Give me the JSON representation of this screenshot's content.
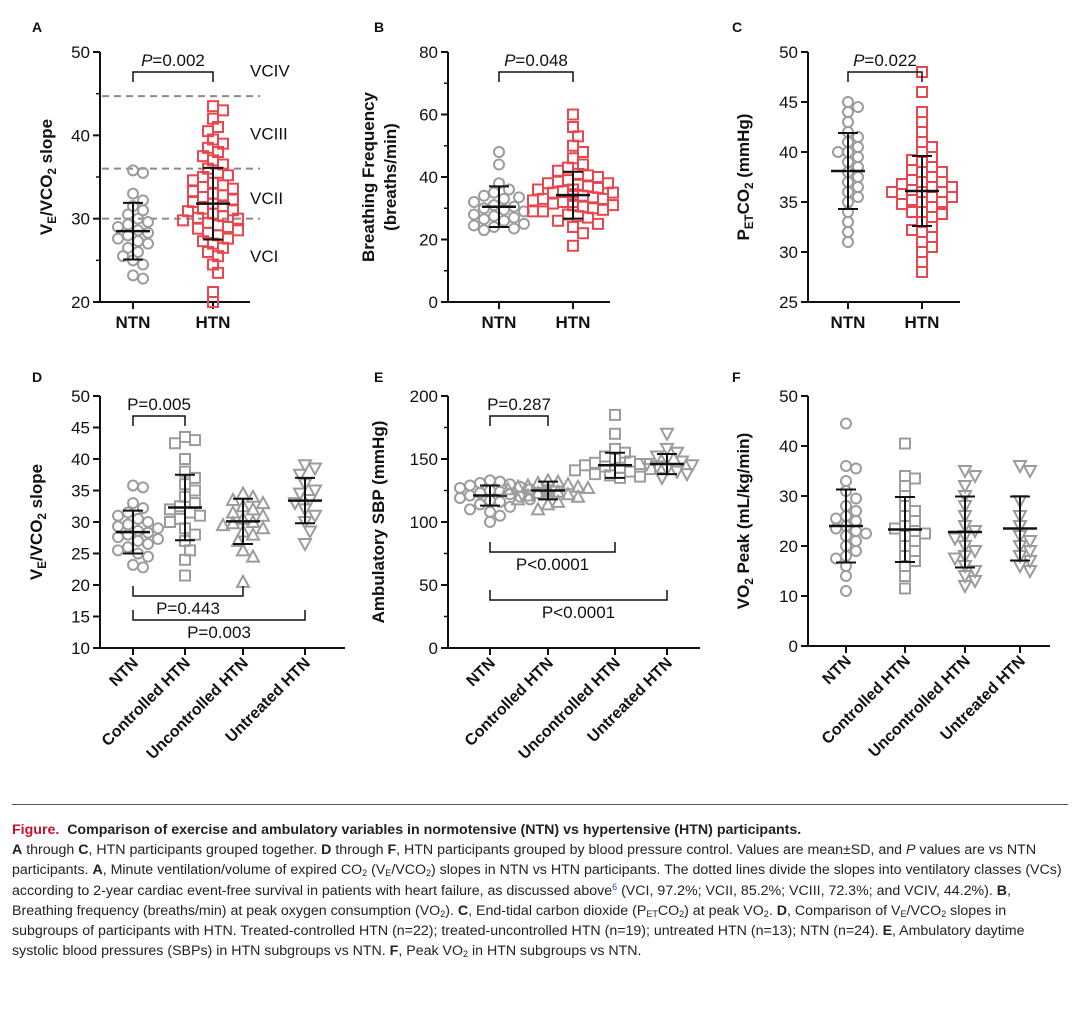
{
  "colors": {
    "ntn": "#a0a0a0",
    "htn": "#e8474f",
    "grey_marker": "#9c9c9c",
    "bar": "#111111",
    "dash": "#8a8a8a",
    "caption_accent": "#c8102e"
  },
  "chart_data": [
    {
      "panel": "A",
      "type": "scatter",
      "ylabel": "V_E/VCO_2 slope",
      "ylim": [
        20,
        50
      ],
      "yticks": [
        20,
        30,
        40,
        50
      ],
      "categories": [
        "NTN",
        "HTN"
      ],
      "bracket": {
        "label": "P=0.002",
        "from": 0,
        "to": 1
      },
      "reference_lines": [
        {
          "y": 30,
          "label": "VCI"
        },
        {
          "y": 36,
          "label": "VCII"
        },
        {
          "y": 44.7,
          "label": "VCIII"
        },
        {
          "label": "VCIV"
        }
      ],
      "series": [
        {
          "mean": 28.5,
          "sd": 3.4,
          "marker": "circle",
          "points": [
            22.8,
            23.2,
            24.5,
            25.0,
            25.5,
            26.0,
            26.5,
            27.0,
            27.3,
            27.6,
            28.0,
            28.3,
            28.6,
            29.0,
            29.3,
            29.6,
            30.0,
            30.5,
            31.0,
            31.5,
            32.2,
            33.0,
            35.5,
            35.8
          ]
        },
        {
          "mean": 31.8,
          "sd": 4.3,
          "marker": "square",
          "points": [
            20.0,
            21.2,
            23.5,
            24.5,
            25.5,
            26.0,
            26.5,
            27.0,
            27.3,
            27.6,
            28.0,
            28.3,
            28.6,
            29.0,
            29.2,
            29.5,
            29.8,
            30.0,
            30.3,
            30.6,
            30.9,
            31.2,
            31.5,
            31.8,
            32.0,
            32.3,
            32.6,
            33.0,
            33.3,
            33.6,
            34.0,
            34.3,
            34.6,
            35.0,
            35.5,
            36.0,
            36.5,
            37.0,
            37.5,
            38.0,
            38.5,
            39.5,
            40.5,
            41.0,
            42.0,
            43.0,
            43.5,
            39.0,
            35.2,
            33.8,
            32.8,
            31.0,
            30.1,
            28.8
          ]
        }
      ]
    },
    {
      "panel": "B",
      "type": "scatter",
      "ylabel": "Breathing Frequency (breaths/min)",
      "ylim": [
        0,
        80
      ],
      "yticks": [
        0,
        20,
        40,
        60,
        80
      ],
      "categories": [
        "NTN",
        "HTN"
      ],
      "bracket": {
        "label": "P=0.048",
        "from": 0,
        "to": 1
      },
      "series": [
        {
          "mean": 30.5,
          "sd": 6.5,
          "marker": "circle",
          "points": [
            23,
            23.5,
            24,
            24.5,
            25,
            26,
            26.5,
            27,
            27.5,
            28,
            29,
            29.5,
            30,
            30.5,
            31,
            32,
            33,
            33.5,
            34,
            35,
            36,
            38,
            44,
            48
          ]
        },
        {
          "mean": 34.2,
          "sd": 7.5,
          "marker": "square",
          "points": [
            18,
            22,
            24,
            25,
            26,
            27,
            27.5,
            28,
            29,
            29.5,
            30,
            30.5,
            31,
            31.5,
            32,
            32.5,
            33,
            33.5,
            34,
            34,
            34.5,
            35,
            35.5,
            36,
            36.5,
            37,
            37.5,
            38,
            38.5,
            39,
            40,
            40.5,
            41,
            42,
            43,
            44,
            46,
            48,
            50,
            53,
            56,
            60,
            35,
            33,
            31,
            29,
            36,
            38,
            34,
            32
          ]
        }
      ]
    },
    {
      "panel": "C",
      "type": "scatter",
      "ylabel": "P_ETCO_2 (mmHg)",
      "ylim": [
        25,
        50
      ],
      "yticks": [
        25,
        30,
        35,
        40,
        45,
        50
      ],
      "categories": [
        "NTN",
        "HTN"
      ],
      "bracket": {
        "label": "P=0.022",
        "from": 0,
        "to": 1
      },
      "series": [
        {
          "mean": 38.1,
          "sd": 3.8,
          "marker": "circle",
          "points": [
            31,
            32,
            33,
            34,
            35,
            35.5,
            36,
            36.5,
            37,
            37.5,
            38,
            38.5,
            39,
            39.5,
            40,
            40,
            40.5,
            41,
            41.5,
            42,
            43,
            44,
            44.5,
            45
          ]
        },
        {
          "mean": 36.1,
          "sd": 3.5,
          "marker": "square",
          "points": [
            28,
            29,
            30,
            30.5,
            31,
            31.5,
            32,
            32.5,
            33,
            33.5,
            34,
            34,
            34.5,
            35,
            35,
            35.5,
            35.5,
            36,
            36,
            36,
            36.5,
            36.5,
            37,
            37,
            37.5,
            38,
            38,
            38.5,
            39,
            39.5,
            40,
            40.5,
            41,
            42,
            43,
            44,
            46,
            48,
            35.2,
            36.8,
            34.8,
            37.2,
            33.8,
            38.2,
            36.2,
            35.8,
            39.2,
            32.2
          ]
        }
      ]
    },
    {
      "panel": "D",
      "type": "scatter",
      "ylabel": "V_E/VCO_2 slope",
      "ylim": [
        10,
        50
      ],
      "yticks": [
        10,
        15,
        20,
        25,
        30,
        35,
        40,
        45,
        50
      ],
      "categories": [
        "NTN",
        "Controlled HTN",
        "Uncontrolled HTN",
        "Untreated HTN"
      ],
      "brackets": [
        {
          "label": "P=0.005",
          "from": 0,
          "to": 1,
          "side": "top"
        },
        {
          "label": "P=0.443",
          "from": 0,
          "to": 2,
          "side": "bottom"
        },
        {
          "label": "P=0.003",
          "from": 0,
          "to": 3,
          "side": "bottom"
        }
      ],
      "series": [
        {
          "mean": 28.4,
          "sd": 3.4,
          "marker": "circle",
          "points": [
            22.8,
            23.2,
            24.5,
            25,
            25.5,
            26,
            26.5,
            27,
            27.3,
            27.6,
            28,
            28.3,
            28.6,
            29,
            29.3,
            29.6,
            30,
            30.5,
            31,
            31.5,
            32.2,
            33,
            35.5,
            35.8
          ]
        },
        {
          "mean": 32.3,
          "sd": 5.2,
          "marker": "square",
          "points": [
            21.5,
            24,
            25.5,
            27,
            28,
            29,
            30,
            30.5,
            31,
            31.5,
            32,
            32.5,
            33,
            34,
            35,
            36,
            37,
            38,
            40,
            42.5,
            43,
            43.5
          ]
        },
        {
          "mean": 30.1,
          "sd": 3.6,
          "marker": "triangle-up",
          "points": [
            20.5,
            24.5,
            25.5,
            27,
            28,
            28.5,
            29,
            29.5,
            30,
            30.5,
            31,
            31.5,
            32,
            32.5,
            33,
            33.5,
            34,
            34.5,
            29.8
          ]
        },
        {
          "mean": 33.4,
          "sd": 3.6,
          "marker": "triangle-down",
          "points": [
            26.5,
            28.5,
            30,
            31,
            32,
            33,
            33.5,
            34.5,
            35,
            36,
            37.5,
            38.5,
            39
          ]
        }
      ]
    },
    {
      "panel": "E",
      "type": "scatter",
      "ylabel": "Ambulatory SBP (mmHg)",
      "ylim": [
        0,
        200
      ],
      "yticks": [
        0,
        50,
        100,
        150,
        200
      ],
      "categories": [
        "NTN",
        "Controlled HTN",
        "Uncontrolled HTN",
        "Untreated HTN"
      ],
      "brackets": [
        {
          "label": "P=0.287",
          "from": 0,
          "to": 1,
          "side": "top"
        },
        {
          "label": "P<0.0001",
          "from": 0,
          "to": 2,
          "side": "bottom"
        },
        {
          "label": "P<0.0001",
          "from": 0,
          "to": 3,
          "side": "bottom"
        }
      ],
      "series": [
        {
          "mean": 121,
          "sd": 8,
          "marker": "circle",
          "points": [
            100,
            105,
            108,
            110,
            112,
            114,
            116,
            117,
            118,
            119,
            120,
            121,
            122,
            123,
            124,
            125,
            126,
            127,
            128,
            129,
            130,
            131,
            132,
            133
          ]
        },
        {
          "mean": 125,
          "sd": 7,
          "marker": "triangle-up",
          "points": [
            110,
            114,
            116,
            118,
            120,
            121,
            122,
            123,
            124,
            125,
            126,
            127,
            128,
            129,
            130,
            131,
            132,
            133,
            128,
            124,
            122,
            126
          ]
        },
        {
          "mean": 145,
          "sd": 10,
          "marker": "square",
          "points": [
            135,
            136,
            137,
            138,
            140,
            141,
            142,
            143,
            145,
            146,
            147,
            148,
            150,
            152,
            155,
            158,
            170,
            185,
            144
          ]
        },
        {
          "mean": 146,
          "sd": 8,
          "marker": "triangle-down",
          "points": [
            135,
            138,
            140,
            142,
            144,
            145,
            146,
            148,
            150,
            152,
            155,
            158,
            170
          ]
        }
      ]
    },
    {
      "panel": "F",
      "type": "scatter",
      "ylabel": "VO_2 Peak (mL/kg/min)",
      "ylim": [
        0,
        50
      ],
      "yticks": [
        0,
        10,
        20,
        30,
        40,
        50
      ],
      "categories": [
        "NTN",
        "Controlled HTN",
        "Uncontrolled HTN",
        "Untreated HTN"
      ],
      "series": [
        {
          "mean": 24,
          "sd": 7.3,
          "marker": "circle",
          "points": [
            11,
            14,
            16,
            17.5,
            18,
            19,
            20,
            21,
            22,
            22.5,
            23,
            23.5,
            24,
            25,
            25.5,
            26,
            27,
            28,
            29.5,
            31,
            33,
            35.5,
            36,
            44.5
          ]
        },
        {
          "mean": 23.3,
          "sd": 6.5,
          "marker": "square",
          "points": [
            11.5,
            14,
            16,
            17,
            18,
            19,
            20,
            21,
            22,
            22.5,
            23,
            23.5,
            24,
            25,
            26,
            27,
            28,
            30,
            32,
            33.5,
            34,
            40.5
          ]
        },
        {
          "mean": 22.8,
          "sd": 7.1,
          "marker": "triangle-down",
          "points": [
            12,
            13,
            14,
            15,
            16,
            17.5,
            18,
            19,
            20,
            21.5,
            22,
            23,
            24,
            26,
            28,
            30,
            32,
            34,
            35
          ]
        },
        {
          "mean": 23.5,
          "sd": 6.4,
          "marker": "triangle-down",
          "points": [
            15,
            16,
            17,
            18,
            19,
            20,
            21,
            22,
            24,
            26,
            29,
            35,
            36
          ]
        }
      ]
    }
  ],
  "caption": {
    "figure_label": "Figure.",
    "title": "Comparison of exercise and ambulatory variables in normotensive (NTN) vs hypertensive (HTN) participants.",
    "body_text": "A through C, HTN participants grouped together. D through F, HTN participants grouped by blood pressure control. Values are mean±SD, and P values are vs NTN participants. A, Minute ventilation/volume of expired CO2 (VE/VCO2) slopes in NTN vs HTN participants. The dotted lines divide the slopes into ventilatory classes (VCs) according to 2-year cardiac event-free survival in patients with heart failure, as discussed above6 (VCI, 97.2%; VCII, 85.2%; VCIII, 72.3%; and VCIV, 44.2%). B, Breathing frequency (breaths/min) at peak oxygen consumption (VO2). C, End-tidal carbon dioxide (PETCO2) at peak VO2. D, Comparison of VE/VCO2 slopes in subgroups of participants with HTN. Treated-controlled HTN (n=22); treated-uncontrolled HTN (n=19); untreated HTN (n=13); NTN (n=24). E, Ambulatory daytime systolic blood pressures (SBPs) in HTN subgroups vs NTN. F, Peak VO2 in HTN subgroups vs NTN."
  }
}
